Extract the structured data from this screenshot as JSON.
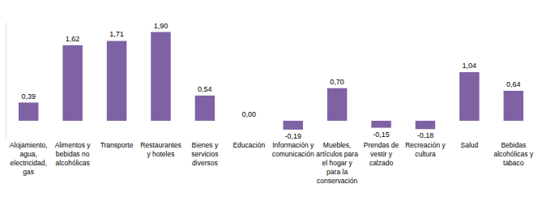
{
  "chart_data": {
    "type": "bar",
    "categories": [
      "Alojamiento,\nagua,\nelectricidad,\ngas",
      "Alimentos y\nbebidas no\nalcohólicas",
      "Transporte",
      "Restaurantes\ny hoteles",
      "Bienes y\nservicios\ndiversos",
      "Educación",
      "Información y\ncomunicación",
      "Muebles,\nartículos para\nel hogar y\npara la\nconservación",
      "Prendas de\nvestir y\ncalzado",
      "Recreación y\ncultura",
      "Salud",
      "Bebidas\nalcohólicas y\ntabaco"
    ],
    "values": [
      0.39,
      1.62,
      1.71,
      1.9,
      0.54,
      0.0,
      -0.19,
      0.7,
      -0.15,
      -0.18,
      1.04,
      0.64
    ],
    "value_labels": [
      "0,39",
      "1,62",
      "1,71",
      "1,90",
      "0,54",
      "0,00",
      "-0,19",
      "0,70",
      "-0,15",
      "-0,18",
      "1,04",
      "0,64"
    ],
    "color": "#7f62a4",
    "ylim": [
      -0.4,
      2.1
    ],
    "grid": false,
    "data_labels": true,
    "tick_labels": "x"
  }
}
